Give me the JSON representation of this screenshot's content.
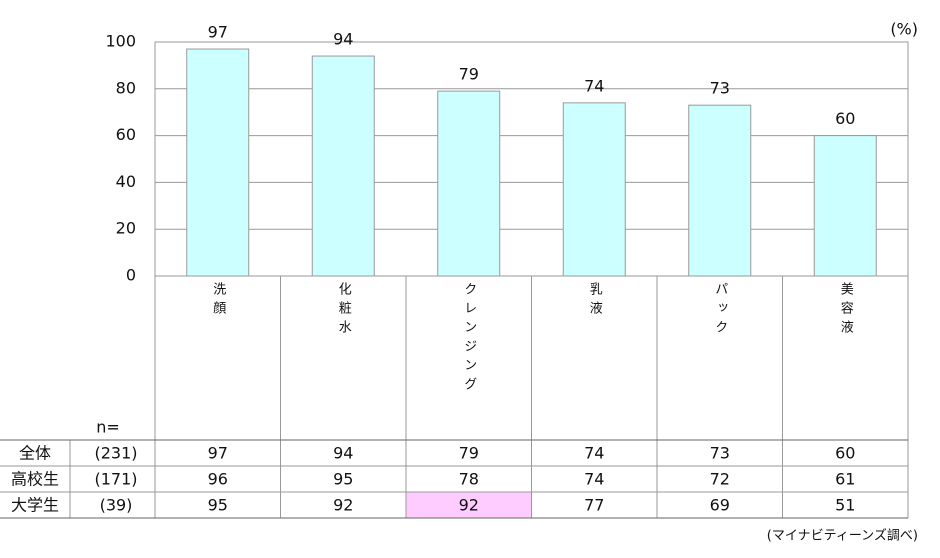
{
  "chart_data": {
    "type": "bar",
    "categories": [
      "洗顔",
      "化粧水",
      "クレンジング",
      "乳液",
      "パック",
      "美容液"
    ],
    "values": [
      97,
      94,
      79,
      74,
      73,
      60
    ],
    "color": "#ccffff",
    "ylim": [
      0,
      100
    ],
    "yticks": [
      0,
      20,
      40,
      60,
      80,
      100
    ],
    "grid": true,
    "unit_label": "(%)"
  },
  "table": {
    "n_header": "n=",
    "rows": [
      {
        "label": "全体",
        "n": "(231)",
        "values": [
          97,
          94,
          79,
          74,
          73,
          60
        ]
      },
      {
        "label": "高校生",
        "n": "(171)",
        "values": [
          96,
          95,
          78,
          74,
          72,
          61
        ]
      },
      {
        "label": "大学生",
        "n": "(39)",
        "values": [
          95,
          92,
          92,
          77,
          69,
          51
        ]
      }
    ],
    "highlight": {
      "row": 2,
      "col": 2,
      "color": "#ffccff"
    }
  },
  "source": "(マイナビティーンズ調べ)"
}
